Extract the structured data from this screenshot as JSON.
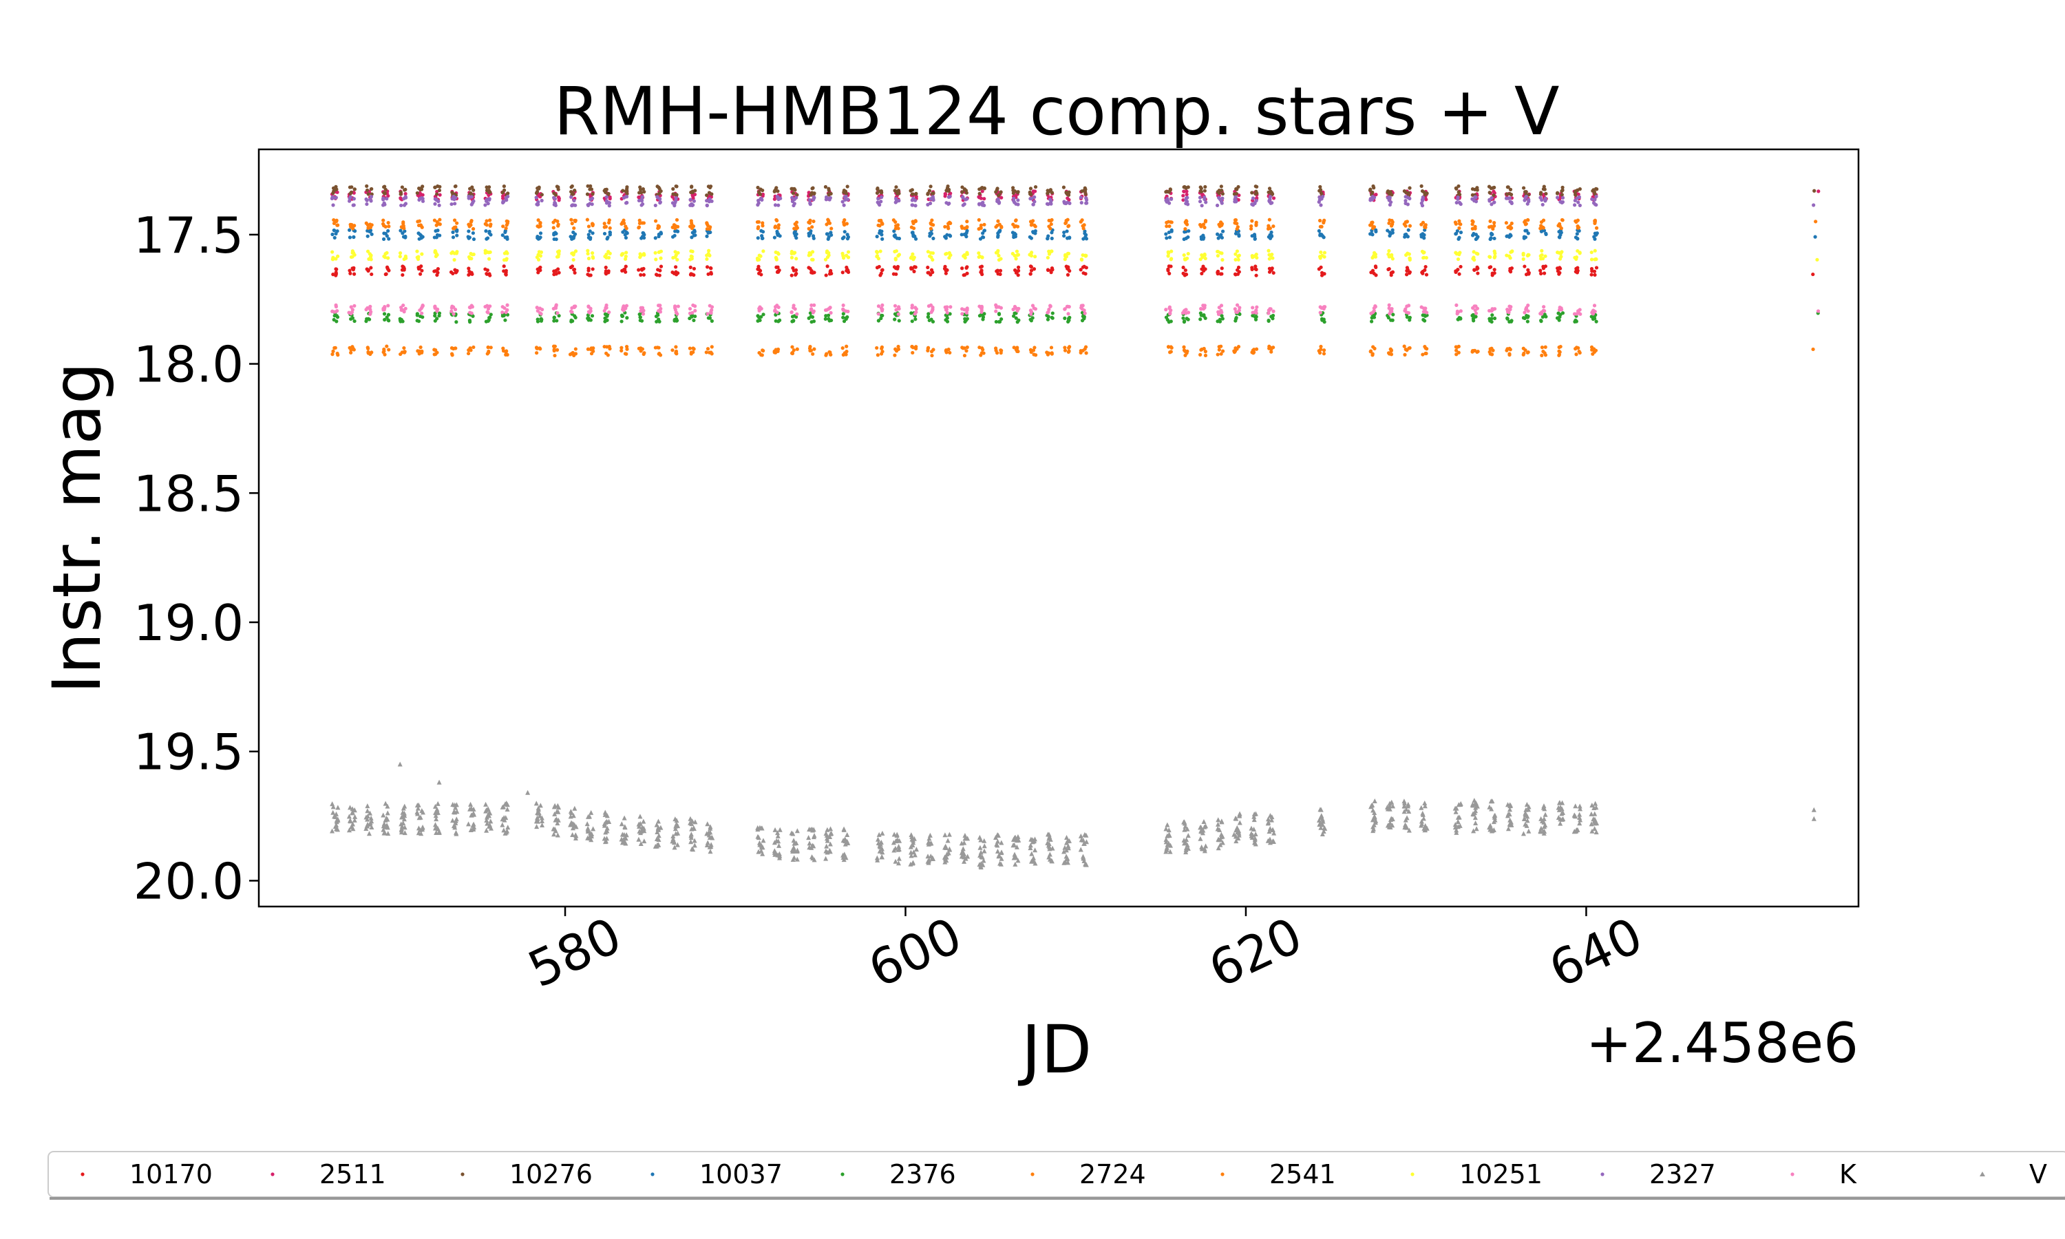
{
  "chart_data": {
    "type": "scatter",
    "title": "RMH-HMB124 comp. stars + V",
    "xlabel": "JD",
    "ylabel": "Instr. mag",
    "x_offset_label": "+2.458e6",
    "xlim": [
      562,
      656
    ],
    "ylim": [
      20.1,
      17.17
    ],
    "y_inverted": true,
    "xticks": [
      580,
      600,
      620,
      640
    ],
    "xtick_labels": [
      "580",
      "600",
      "620",
      "640"
    ],
    "yticks": [
      17.5,
      18.0,
      18.5,
      19.0,
      19.5,
      20.0
    ],
    "ytick_labels": [
      "17.5",
      "18.0",
      "18.5",
      "19.0",
      "19.5",
      "20.0"
    ],
    "grid": false,
    "legend_position": "bottom",
    "observation_nights": [
      566.5,
      567.5,
      568.5,
      569.5,
      570.5,
      571.5,
      572.5,
      573.5,
      574.5,
      575.5,
      576.5,
      578.5,
      579.5,
      580.5,
      581.5,
      582.5,
      583.5,
      584.5,
      585.5,
      586.5,
      587.5,
      588.5,
      591.5,
      592.5,
      593.5,
      594.5,
      595.5,
      596.5,
      598.5,
      599.5,
      600.5,
      601.5,
      602.5,
      603.5,
      604.5,
      605.5,
      606.5,
      607.5,
      608.5,
      609.5,
      610.5,
      615.5,
      616.5,
      617.5,
      618.5,
      619.5,
      620.5,
      621.5,
      624.5,
      627.5,
      628.5,
      629.5,
      630.5,
      632.5,
      633.5,
      634.5,
      635.5,
      636.5,
      637.5,
      638.5,
      639.5,
      640.5,
      653.5
    ],
    "series": [
      {
        "name": "10170",
        "color": "#e41a1c",
        "marker": "dot",
        "mag": 17.64
      },
      {
        "name": "2511",
        "color": "#d6216a",
        "marker": "dot",
        "mag": 17.35
      },
      {
        "name": "10276",
        "color": "#7a5230",
        "marker": "dot",
        "mag": 17.33
      },
      {
        "name": "10037",
        "color": "#1f77b4",
        "marker": "dot",
        "mag": 17.5
      },
      {
        "name": "2376",
        "color": "#2ca02c",
        "marker": "dot",
        "mag": 17.82
      },
      {
        "name": "2724",
        "color": "#ff7f0e",
        "marker": "dot",
        "mag": 17.95
      },
      {
        "name": "2541",
        "color": "#ff7f0e",
        "marker": "dot",
        "mag": 17.46
      },
      {
        "name": "10251",
        "color": "#ffff33",
        "marker": "dot",
        "mag": 17.58
      },
      {
        "name": "2327",
        "color": "#9467bd",
        "marker": "dot",
        "mag": 17.37
      },
      {
        "name": "K",
        "color": "#f781bf",
        "marker": "dot",
        "mag": 17.79
      },
      {
        "name": "V",
        "color": "#999999",
        "marker": "triangle",
        "nightly_mag": [
          19.76,
          19.76,
          19.76,
          19.76,
          19.76,
          19.76,
          19.76,
          19.76,
          19.76,
          19.76,
          19.76,
          19.76,
          19.77,
          19.78,
          19.79,
          19.79,
          19.8,
          19.8,
          19.81,
          19.82,
          19.82,
          19.83,
          19.84,
          19.86,
          19.86,
          19.86,
          19.86,
          19.86,
          19.87,
          19.88,
          19.88,
          19.88,
          19.88,
          19.88,
          19.89,
          19.88,
          19.88,
          19.88,
          19.88,
          19.88,
          19.88,
          19.83,
          19.83,
          19.83,
          19.82,
          19.8,
          19.8,
          19.8,
          19.78,
          19.75,
          19.75,
          19.75,
          19.76,
          19.76,
          19.75,
          19.75,
          19.75,
          19.76,
          19.76,
          19.75,
          19.76,
          19.76,
          19.77
        ],
        "outliers": [
          [
            570.3,
            19.55
          ],
          [
            572.6,
            19.62
          ],
          [
            577.8,
            19.66
          ]
        ]
      }
    ]
  }
}
